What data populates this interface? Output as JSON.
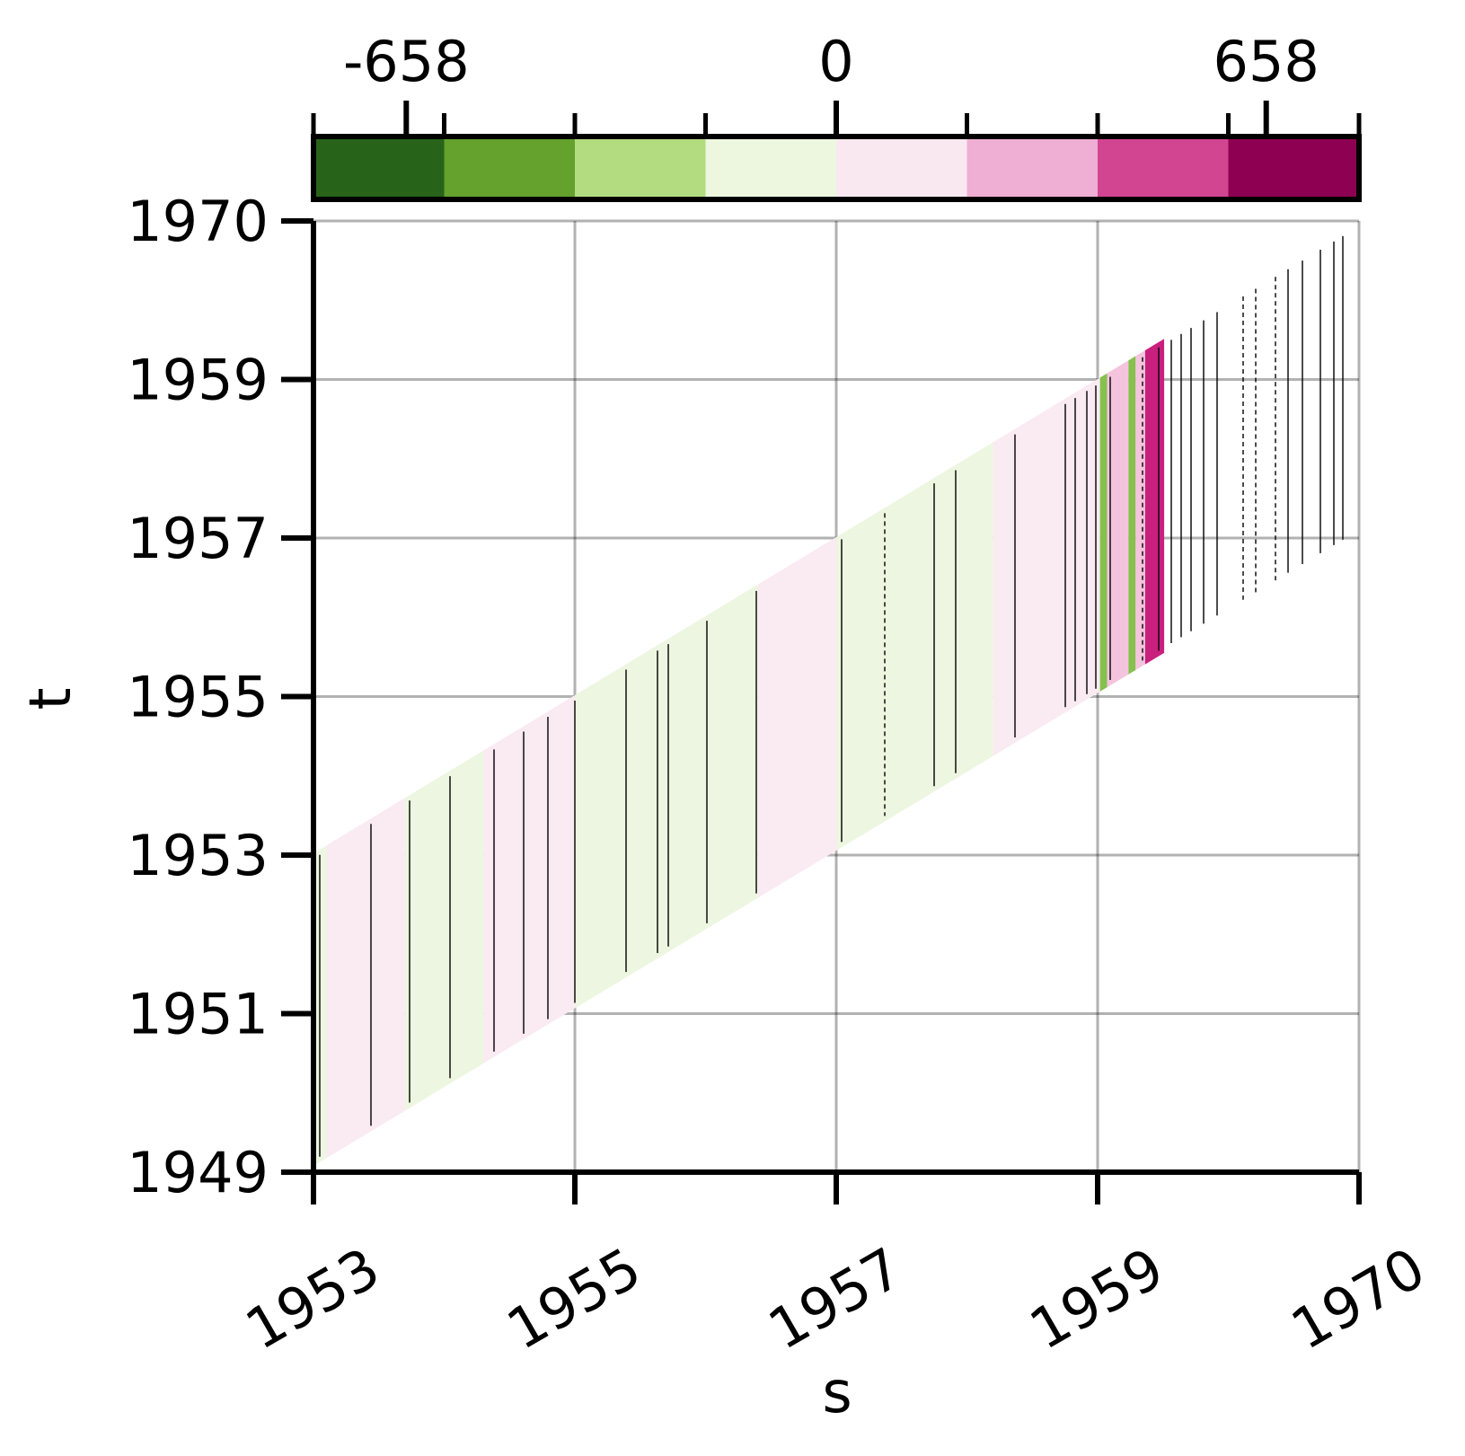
{
  "chart_data": {
    "type": "heatmap",
    "xlabel": "s",
    "ylabel": "t",
    "x_ticks": [
      "1953",
      "1955",
      "1957",
      "1959",
      "1970"
    ],
    "y_ticks": [
      "1949",
      "1951",
      "1953",
      "1955",
      "1957",
      "1959",
      "1970"
    ],
    "grid": true,
    "colorbar": {
      "placement": "top",
      "tick_labels": [
        "-658",
        "0",
        "658"
      ],
      "tick_values": [
        -658,
        0,
        658
      ],
      "range": [
        -800,
        800
      ],
      "levels": [
        -800,
        -600,
        -400,
        -200,
        0,
        200,
        400,
        600,
        800
      ],
      "colors": [
        "#276419",
        "#64a12d",
        "#b2dc7f",
        "#edf7e0",
        "#fae8f1",
        "#efaed4",
        "#d14591",
        "#8e0152"
      ]
    },
    "field_note": "",
    "regions": [
      {
        "s": [
          1953.0,
          1953.1
        ],
        "level": -1
      },
      {
        "s": [
          1953.1,
          1953.7
        ],
        "level": 1
      },
      {
        "s": [
          1953.7,
          1954.3
        ],
        "level": -1
      },
      {
        "s": [
          1954.3,
          1955.0
        ],
        "level": 1
      },
      {
        "s": [
          1955.0,
          1956.4
        ],
        "level": -1
      },
      {
        "s": [
          1956.4,
          1957.0
        ],
        "level": 1
      },
      {
        "s": [
          1957.0,
          1958.2
        ],
        "level": -1
      },
      {
        "s": [
          1958.2,
          1959.1
        ],
        "level": 1
      },
      {
        "s": [
          1959.1,
          1959.4
        ],
        "level": -2
      },
      {
        "s": [
          1959.4,
          1960.3
        ],
        "level": 2
      },
      {
        "s": [
          1960.3,
          1960.6
        ],
        "level": -2
      },
      {
        "s": [
          1960.6,
          1961.0
        ],
        "level": 2
      },
      {
        "s": [
          1961.0,
          1961.8
        ],
        "level": 3
      }
    ]
  }
}
